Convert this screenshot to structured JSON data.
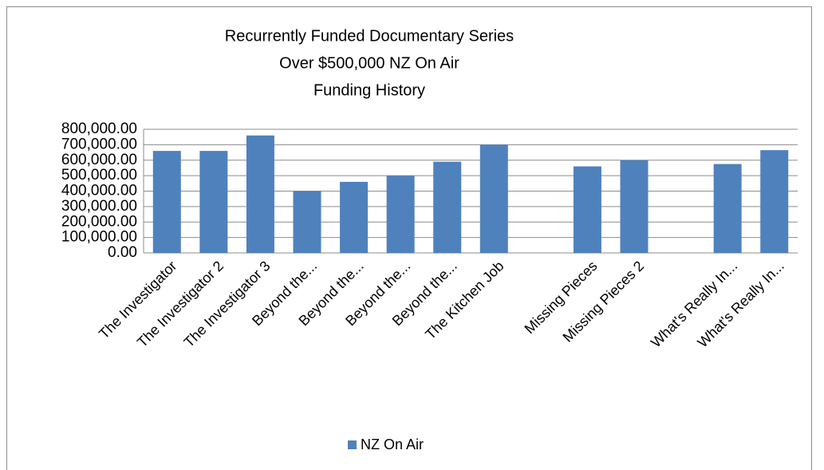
{
  "chart_data": {
    "type": "bar",
    "title": [
      "Recurrently Funded Documentary Series",
      "Over $500,000 NZ On Air",
      "Funding History"
    ],
    "categories": [
      "The Investigator",
      "The Investigator  2",
      "The Investigator  3",
      "Beyond the...",
      "Beyond the...",
      "Beyond the...",
      "Beyond the...",
      "The Kitchen Job",
      null,
      "Missing Pieces",
      "Missing Pieces 2",
      null,
      "What's Really In...",
      "What's Really In..."
    ],
    "series": [
      {
        "name": "NZ On Air",
        "color": "#4f81bd",
        "values": [
          660000,
          660000,
          760000,
          400000,
          460000,
          500000,
          590000,
          700000,
          null,
          560000,
          600000,
          null,
          575000,
          665000
        ]
      }
    ],
    "ylim": [
      0,
      800000
    ],
    "yticks": [
      {
        "value": 0,
        "label": "0.00"
      },
      {
        "value": 100000,
        "label": "100,000.00"
      },
      {
        "value": 200000,
        "label": "200,000.00"
      },
      {
        "value": 300000,
        "label": "300,000.00"
      },
      {
        "value": 400000,
        "label": "400,000.00"
      },
      {
        "value": 500000,
        "label": "500,000.00"
      },
      {
        "value": 600000,
        "label": "600,000.00"
      },
      {
        "value": 700000,
        "label": "700,000.00"
      },
      {
        "value": 800000,
        "label": "800,000.00"
      }
    ],
    "grid": true,
    "legend": "bottom"
  }
}
